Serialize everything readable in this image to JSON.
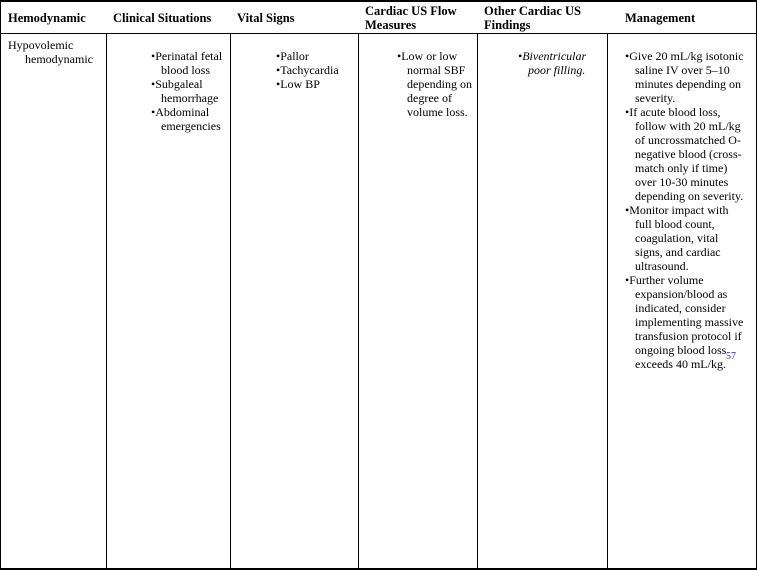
{
  "table": {
    "headers": [
      {
        "label": "Hemodynamic"
      },
      {
        "label": "Clinical Situations"
      },
      {
        "label": "Vital Signs"
      },
      {
        "label": "Cardiac US Flow Measures"
      },
      {
        "label": "Other Cardiac US Findings"
      },
      {
        "label": "Management"
      }
    ],
    "row": {
      "hemodynamic": {
        "line1": "Hypovolemic",
        "line2": "hemodynamic"
      },
      "clinical_situations": [
        "Perinatal fetal blood loss",
        "Subgaleal hemorrhage",
        "Abdominal emergencies"
      ],
      "vital_signs": [
        "Pallor",
        "Tachycardia",
        "Low BP"
      ],
      "cardiac_us_flow_measures": [
        "Low or low normal SBF depending on degree of volume loss."
      ],
      "other_cardiac_us_findings": [
        "Biventricular poor filling."
      ],
      "management": [
        "Give 20 mL/kg isotonic saline IV over 5–10 minutes depending on severity.",
        "If acute blood loss, follow with 20 mL/kg of uncrossmatched O-negative blood (cross-match only if time) over 10-30 minutes depending on severity.",
        "Monitor impact with full blood count, coagulation, vital signs, and cardiac ultrasound.",
        {
          "text": "Further volume expansion/blood as indicated, consider implementing massive transfusion protocol if ongoing blood loss exceeds 40 mL/kg.",
          "citation": "57"
        }
      ]
    }
  }
}
